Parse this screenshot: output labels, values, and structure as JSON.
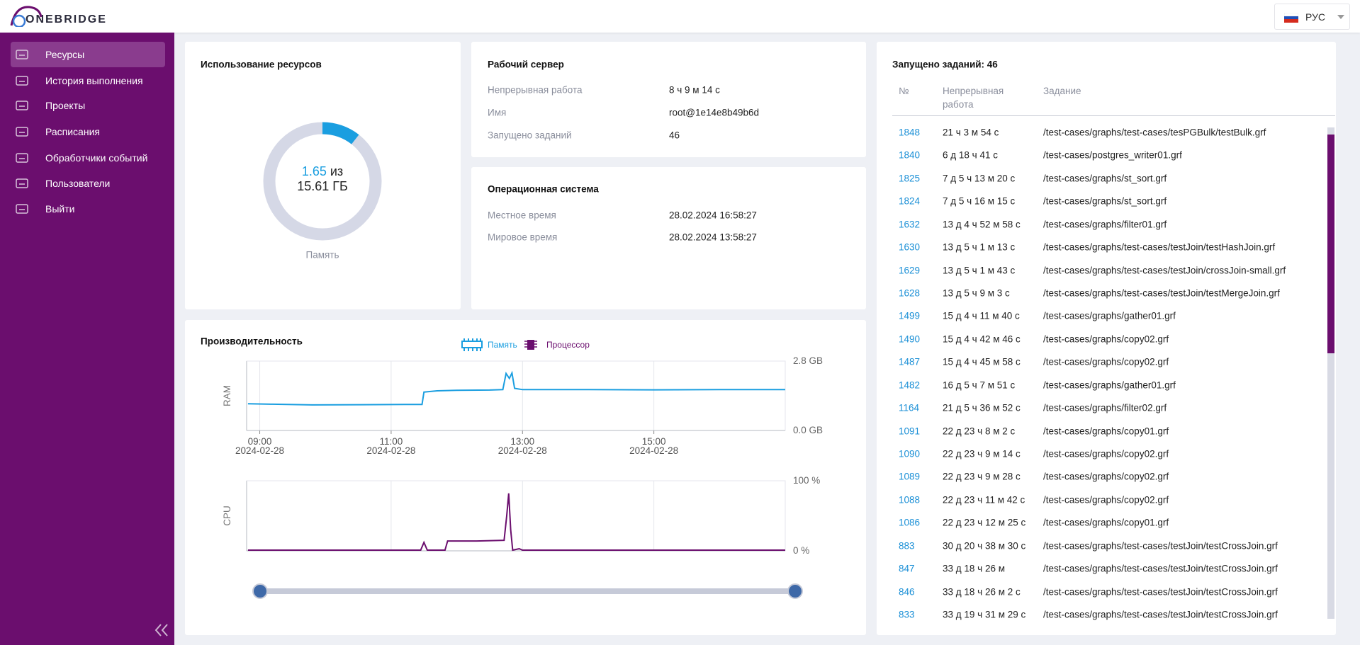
{
  "header": {
    "logo": "ONEBRIDGE",
    "language": "РУС"
  },
  "sidebar": {
    "items": [
      "Ресурсы",
      "История выполнения",
      "Проекты",
      "Расписания",
      "Обработчики событий",
      "Пользователи",
      "Выйти"
    ]
  },
  "resources": {
    "title": "Использование ресурсов",
    "memory": {
      "used": 1.65,
      "separator": "из",
      "total": {
        "value": 15.61,
        "label": "15.61 ГБ"
      },
      "caption": "Память"
    }
  },
  "server": {
    "title": "Рабочий сервер",
    "rows": [
      [
        "Непрерывная работа",
        "8 ч 9 м 14 с"
      ],
      [
        "Имя",
        "root@1e14e8b49b6d"
      ],
      [
        "Запущено заданий",
        "46"
      ]
    ]
  },
  "os": {
    "title": "Операционная система",
    "rows": [
      [
        "Местное время",
        "28.02.2024 16:58:27"
      ],
      [
        "Мировое время",
        "28.02.2024 13:58:27"
      ]
    ]
  },
  "performance": {
    "title": "Производительность",
    "legend": [
      "Память",
      "Процессор"
    ],
    "charts": [
      {
        "type": "line",
        "ylabel": "RAM",
        "color": "#1a9ee0",
        "x": [
          8.82,
          9.2,
          9.8,
          10.5,
          11.2,
          11.47,
          11.5,
          11.7,
          12.0,
          12.5,
          12.7,
          12.75,
          12.8,
          12.84,
          12.88,
          13.0,
          14.0,
          15.0,
          16.0,
          17.0
        ],
        "values": [
          1.08,
          1.06,
          1.03,
          1.04,
          1.05,
          1.05,
          1.55,
          1.6,
          1.62,
          1.63,
          1.65,
          2.3,
          2.1,
          2.32,
          1.7,
          1.65,
          1.65,
          1.64,
          1.65,
          1.65
        ],
        "xlim": [
          8.8,
          17.0
        ],
        "ylim": [
          0,
          2.8
        ],
        "yticks": [
          {
            "value": 2.8,
            "label": "2.8 GB"
          },
          {
            "value": 0,
            "label": "0.0 GB"
          }
        ],
        "xticks": [
          {
            "value": 9,
            "label": "09:00",
            "date": "2024-02-28"
          },
          {
            "value": 11,
            "label": "11:00",
            "date": "2024-02-28"
          },
          {
            "value": 13,
            "label": "13:00",
            "date": "2024-02-28"
          },
          {
            "value": 15,
            "label": "15:00",
            "date": "2024-02-28"
          }
        ]
      },
      {
        "type": "line",
        "ylabel": "CPU",
        "color": "#6b0e6e",
        "x": [
          8.82,
          11.45,
          11.5,
          11.55,
          11.82,
          11.86,
          12.3,
          12.72,
          12.76,
          12.79,
          12.82,
          12.85,
          12.95,
          13.0,
          17.0
        ],
        "values": [
          1,
          1,
          12,
          1,
          1,
          14,
          14,
          15,
          50,
          82,
          30,
          1,
          3,
          1,
          1
        ],
        "xlim": [
          8.8,
          17.0
        ],
        "ylim": [
          0,
          100
        ],
        "yticks": [
          {
            "value": 100,
            "label": "100 %"
          },
          {
            "value": 0,
            "label": "0 %"
          }
        ],
        "xgrid": [
          11,
          13,
          15
        ]
      }
    ]
  },
  "tasks": {
    "title": "Запущено заданий: 46",
    "columns": [
      "№",
      "Непрерывная работа",
      "Задание"
    ],
    "rows": [
      [
        "1848",
        "21 ч 3 м 54 с",
        "/test-cases/graphs/test-cases/tesPGBulk/testBulk.grf"
      ],
      [
        "1840",
        "6 д 18 ч 41 с",
        "/test-cases/postgres_writer01.grf"
      ],
      [
        "1825",
        "7 д 5 ч 13 м 20 с",
        "/test-cases/graphs/st_sort.grf"
      ],
      [
        "1824",
        "7 д 5 ч 16 м 15 с",
        "/test-cases/graphs/st_sort.grf"
      ],
      [
        "1632",
        "13 д 4 ч 52 м 58 с",
        "/test-cases/graphs/filter01.grf"
      ],
      [
        "1630",
        "13 д 5 ч 1 м 13 с",
        "/test-cases/graphs/test-cases/testJoin/testHashJoin.grf"
      ],
      [
        "1629",
        "13 д 5 ч 1 м 43 с",
        "/test-cases/graphs/test-cases/testJoin/crossJoin-small.grf"
      ],
      [
        "1628",
        "13 д 5 ч 9 м 3 с",
        "/test-cases/graphs/test-cases/testJoin/testMergeJoin.grf"
      ],
      [
        "1499",
        "15 д 4 ч 11 м 40 с",
        "/test-cases/graphs/gather01.grf"
      ],
      [
        "1490",
        "15 д 4 ч 42 м 46 с",
        "/test-cases/graphs/copy02.grf"
      ],
      [
        "1487",
        "15 д 4 ч 45 м 58 с",
        "/test-cases/graphs/copy02.grf"
      ],
      [
        "1482",
        "16 д 5 ч 7 м 51 с",
        "/test-cases/graphs/gather01.grf"
      ],
      [
        "1164",
        "21 д 5 ч 36 м 52 с",
        "/test-cases/graphs/filter02.grf"
      ],
      [
        "1091",
        "22 д 23 ч 8 м 2 с",
        "/test-cases/graphs/copy01.grf"
      ],
      [
        "1090",
        "22 д 23 ч 9 м 14 с",
        "/test-cases/graphs/copy02.grf"
      ],
      [
        "1089",
        "22 д 23 ч 9 м 28 с",
        "/test-cases/graphs/copy02.grf"
      ],
      [
        "1088",
        "22 д 23 ч 11 м 42 с",
        "/test-cases/graphs/copy02.grf"
      ],
      [
        "1086",
        "22 д 23 ч 12 м 25 с",
        "/test-cases/graphs/copy01.grf"
      ],
      [
        "883",
        "30 д 20 ч 38 м 30 с",
        "/test-cases/graphs/test-cases/testJoin/testCrossJoin.grf"
      ],
      [
        "847",
        "33 д 18 ч 26 м",
        "/test-cases/graphs/test-cases/testJoin/testCrossJoin.grf"
      ],
      [
        "846",
        "33 д 18 ч 26 м 2 с",
        "/test-cases/graphs/test-cases/testJoin/testCrossJoin.grf"
      ],
      [
        "833",
        "33 д 19 ч 31 м 29 с",
        "/test-cases/graphs/test-cases/testJoin/testCrossJoin.grf"
      ]
    ]
  }
}
